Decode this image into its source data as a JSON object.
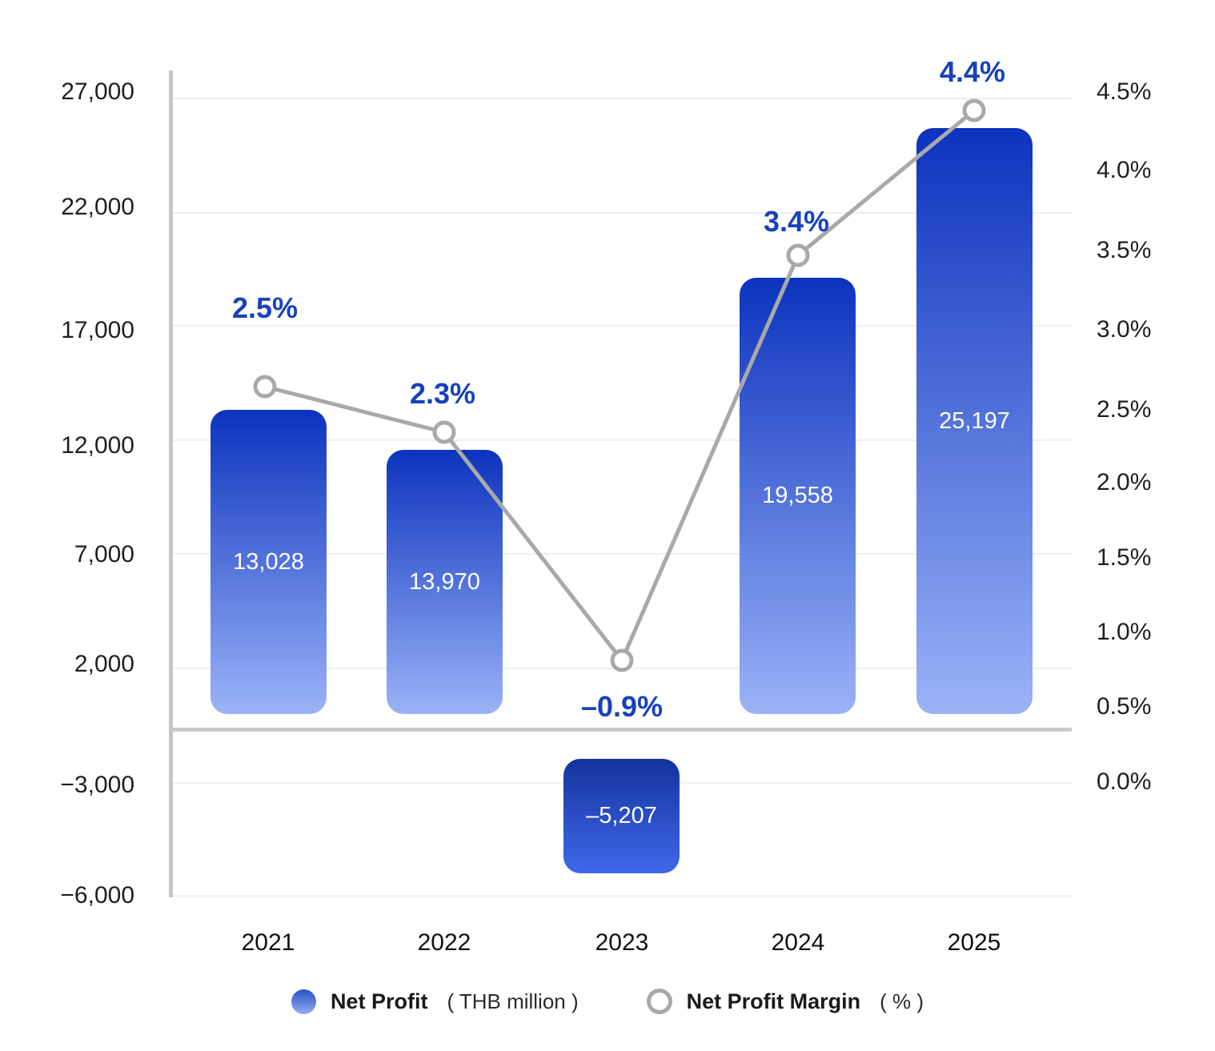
{
  "chart_data": {
    "type": "combo-bar-line",
    "categories": [
      "2021",
      "2022",
      "2023",
      "2024",
      "2025"
    ],
    "series": [
      {
        "name": "Net Profit",
        "type": "bar",
        "unit": "THB million",
        "values": [
          13028,
          13970,
          -5207,
          19558,
          25197
        ],
        "value_labels": [
          "13,028",
          "13,970",
          "–5,207",
          "19,558",
          "25,197"
        ]
      },
      {
        "name": "Net Profit Margin",
        "type": "line",
        "unit": "%",
        "values": [
          2.5,
          2.3,
          -0.9,
          3.4,
          4.4
        ],
        "value_labels": [
          "2.5%",
          "2.3%",
          "–0.9%",
          "3.4%",
          "4.4%"
        ]
      }
    ],
    "left_axis": {
      "ticks": [
        "27,000",
        "22,000",
        "17,000",
        "12,000",
        "7,000",
        "2,000",
        "−3,000",
        "−6,000"
      ],
      "range_top": 27000,
      "range_bottom": -6000,
      "grid": true
    },
    "right_axis": {
      "ticks": [
        "4.5%",
        "4.0%",
        "3.5%",
        "3.0%",
        "2.5%",
        "2.0%",
        "1.5%",
        "1.0%",
        "0.5%",
        "0.0%"
      ],
      "range_top": 4.5,
      "range_bottom": 0.0
    },
    "legend": {
      "position": "bottom-center",
      "items": [
        {
          "label": "Net Profit",
          "unit": "( THB million )",
          "swatch": "blue-gradient-circle"
        },
        {
          "label": "Net Profit Margin",
          "unit": "( % )",
          "swatch": "gray-open-circle"
        }
      ]
    },
    "colors": {
      "bar_gradient_top": "#0c33be",
      "bar_gradient_bottom": "#9ab3f7",
      "negative_bar_gradient_top": "#14339d",
      "negative_bar_gradient_bottom": "#3f68ea",
      "line": "#a9a9a9",
      "marker_fill": "#ffffff",
      "percent_label": "#1842bb",
      "gridline": "#efefef",
      "zero_line": "#cbcbcb",
      "axis_line": "#c6c6c6"
    }
  }
}
